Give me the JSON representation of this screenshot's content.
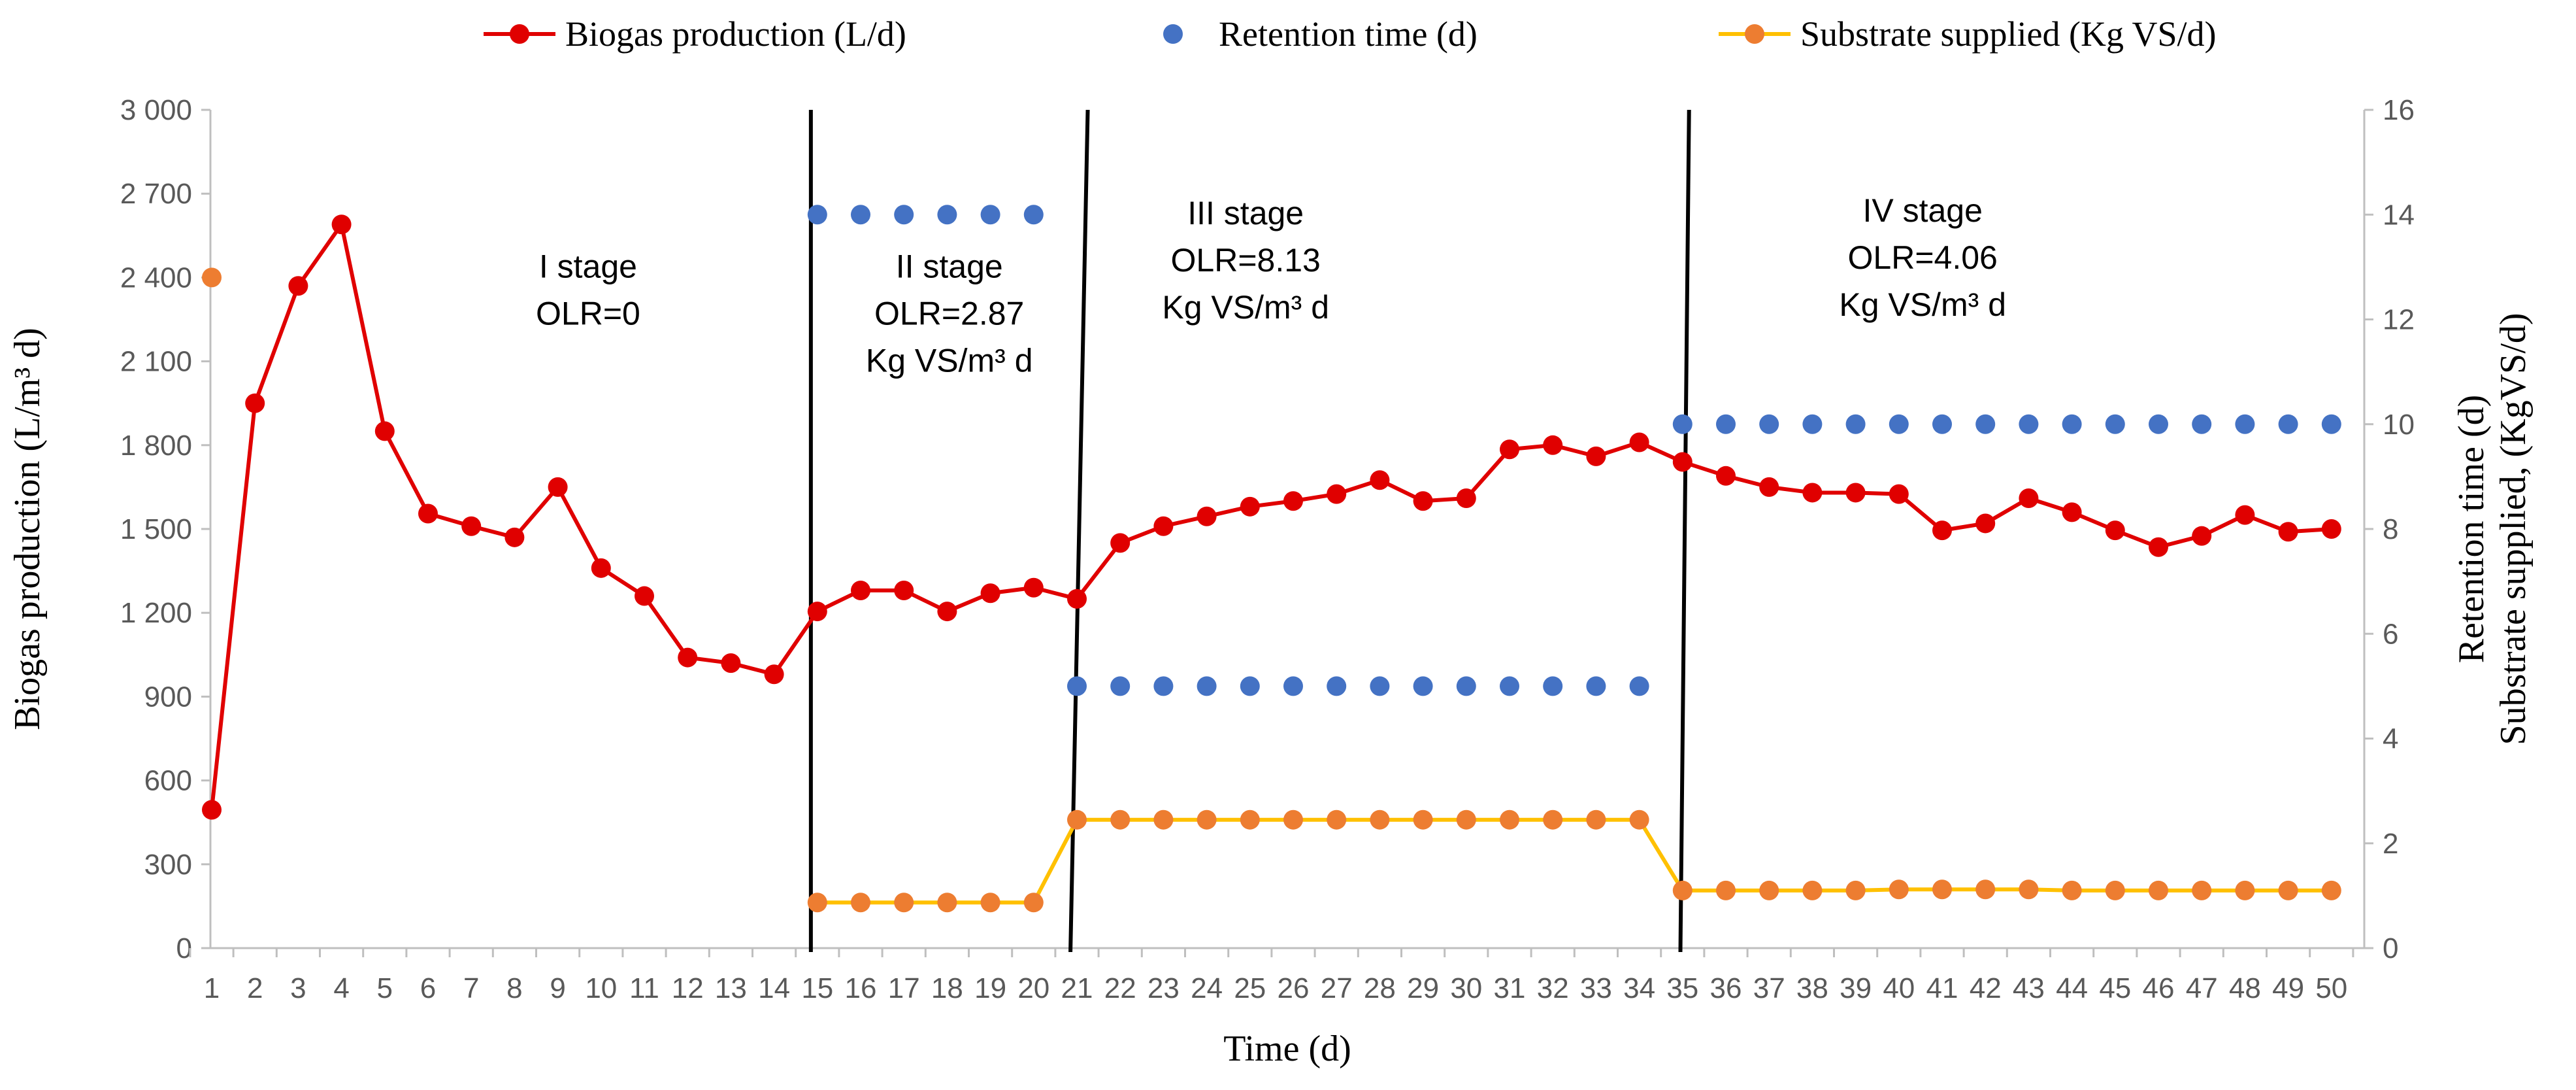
{
  "chart_data": {
    "type": "line",
    "xlabel": "Time (d)",
    "ylabel_left": "Biogas production (L/m³ d)",
    "ylabel_right": [
      "Retention time (d)",
      "Substrate supplied, (KgVS/d)"
    ],
    "x": [
      1,
      2,
      3,
      4,
      5,
      6,
      7,
      8,
      9,
      10,
      11,
      12,
      13,
      14,
      15,
      16,
      17,
      18,
      19,
      20,
      21,
      22,
      23,
      24,
      25,
      26,
      27,
      28,
      29,
      30,
      31,
      32,
      33,
      34,
      35,
      36,
      37,
      38,
      39,
      40,
      41,
      42,
      43,
      44,
      45,
      46,
      47,
      48,
      49,
      50
    ],
    "ylim_left": [
      0,
      3000
    ],
    "yticks_left": [
      "0",
      "300",
      "600",
      "900",
      "1 200",
      "1 500",
      "1 800",
      "2 100",
      "2 400",
      "2 700",
      "3 000"
    ],
    "ylim_right": [
      0,
      16
    ],
    "yticks_right": [
      "0",
      "2",
      "4",
      "6",
      "8",
      "10",
      "12",
      "14",
      "16"
    ],
    "legend": [
      {
        "name": "Biogas production (L/d)",
        "color": "#e00000",
        "style": "line-marker"
      },
      {
        "name": "Retention time (d)",
        "color": "#4472c4",
        "style": "marker"
      },
      {
        "name": "Substrate supplied (Kg VS/d)",
        "color": "#ffc000",
        "marker_color": "#ed7d31",
        "style": "line-marker"
      }
    ],
    "series": [
      {
        "name": "Biogas production (L/d)",
        "axis": "left",
        "color": "#e00000",
        "x": [
          1,
          2,
          3,
          4,
          5,
          6,
          7,
          8,
          9,
          10,
          11,
          12,
          13,
          14,
          15,
          16,
          17,
          18,
          19,
          20,
          21,
          22,
          23,
          24,
          25,
          26,
          27,
          28,
          29,
          30,
          31,
          32,
          33,
          34,
          35,
          36,
          37,
          38,
          39,
          40,
          41,
          42,
          43,
          44,
          45,
          46,
          47,
          48,
          49,
          50
        ],
        "values": [
          495,
          1950,
          2370,
          2590,
          1850,
          1555,
          1510,
          1470,
          1650,
          1360,
          1260,
          1040,
          1020,
          980,
          1205,
          1280,
          1280,
          1205,
          1270,
          1290,
          1250,
          1450,
          1510,
          1545,
          1580,
          1600,
          1625,
          1675,
          1600,
          1610,
          1785,
          1800,
          1760,
          1810,
          1740,
          1690,
          1650,
          1630,
          1630,
          1625,
          1495,
          1520,
          1610,
          1560,
          1495,
          1435,
          1475,
          1550,
          1490,
          1500
        ]
      },
      {
        "name": "Retention time (d)",
        "axis": "right",
        "color": "#4472c4",
        "x": [
          15,
          16,
          17,
          18,
          19,
          20,
          21,
          22,
          23,
          24,
          25,
          26,
          27,
          28,
          29,
          30,
          31,
          32,
          33,
          34,
          35,
          36,
          37,
          38,
          39,
          40,
          41,
          42,
          43,
          44,
          45,
          46,
          47,
          48,
          49,
          50
        ],
        "values": [
          14,
          14,
          14,
          14,
          14,
          14,
          5,
          5,
          5,
          5,
          5,
          5,
          5,
          5,
          5,
          5,
          5,
          5,
          5,
          5,
          10,
          10,
          10,
          10,
          10,
          10,
          10,
          10,
          10,
          10,
          10,
          10,
          10,
          10,
          10,
          10
        ]
      },
      {
        "name": "Substrate supplied (Kg VS/d)",
        "axis": "right",
        "color": "#ffc000",
        "marker_color": "#ed7d31",
        "x": [
          1,
          15,
          16,
          17,
          18,
          19,
          20,
          21,
          22,
          23,
          24,
          25,
          26,
          27,
          28,
          29,
          30,
          31,
          32,
          33,
          34,
          35,
          36,
          37,
          38,
          39,
          40,
          41,
          42,
          43,
          44,
          45,
          46,
          47,
          48,
          49,
          50
        ],
        "values": [
          12.8,
          0.87,
          0.87,
          0.87,
          0.87,
          0.87,
          0.87,
          2.45,
          2.45,
          2.45,
          2.45,
          2.45,
          2.45,
          2.45,
          2.45,
          2.45,
          2.45,
          2.45,
          2.45,
          2.45,
          2.45,
          1.1,
          1.1,
          1.1,
          1.1,
          1.1,
          1.12,
          1.12,
          1.12,
          1.12,
          1.1,
          1.1,
          1.1,
          1.1,
          1.1,
          1.1,
          1.1
        ],
        "line_from_x": 15
      }
    ],
    "stage_dividers": [
      {
        "x_top": 14.85,
        "x_bottom": 14.85
      },
      {
        "x_top": 21.25,
        "x_bottom": 20.85
      },
      {
        "x_top": 35.15,
        "x_bottom": 34.95
      }
    ],
    "annotations": [
      {
        "lines": [
          "I stage",
          "OLR=0"
        ],
        "x": 9.7,
        "y": 2400
      },
      {
        "lines": [
          "II stage",
          "OLR=2.87",
          "Kg VS/m³ d"
        ],
        "x": 18.05,
        "y": 2400
      },
      {
        "lines": [
          "III stage",
          "OLR=8.13",
          "Kg VS/m³ d"
        ],
        "x": 24.9,
        "y": 2590
      },
      {
        "lines": [
          "IV stage",
          "OLR=4.06",
          "Kg VS/m³ d"
        ],
        "x": 40.55,
        "y": 2600
      }
    ]
  }
}
